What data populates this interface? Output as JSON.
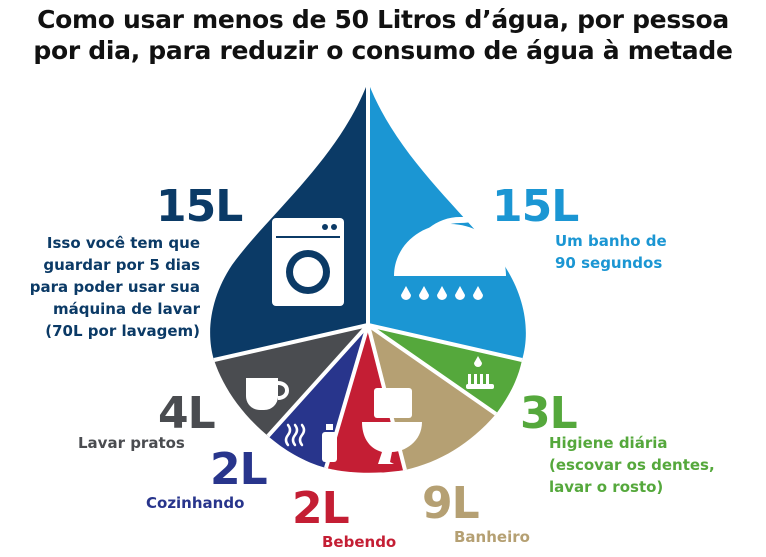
{
  "title": {
    "line1": "Como usar menos de 50 Litros d’água, por pessoa",
    "line2": "por dia, para reduzir o consumo de água à metade"
  },
  "colors": {
    "washing": "#0b3a66",
    "shower": "#1b96d3",
    "hygiene": "#55a83c",
    "toilet": "#b5a073",
    "drinking": "#c41e34",
    "cooking": "#28358c",
    "dishes": "#4a4c50",
    "text_dark": "#111111"
  },
  "icons": [
    "washing-machine-icon",
    "shower-icon",
    "toothbrush-icon",
    "toilet-icon",
    "bottle-icon",
    "steam-icon",
    "cup-icon"
  ],
  "segments": {
    "washing": {
      "amount": "15L",
      "lines": [
        "Isso você tem que",
        "guardar por 5 dias",
        "para poder usar sua",
        "máquina de lavar",
        "(70L por lavagem)"
      ]
    },
    "shower": {
      "amount": "15L",
      "lines": [
        "Um banho de",
        "90 segundos"
      ]
    },
    "hygiene": {
      "amount": "3L",
      "lines": [
        "Higiene diária",
        "(escovar os dentes,",
        "lavar o rosto)"
      ]
    },
    "toilet": {
      "amount": "9L",
      "lines": [
        "Banheiro"
      ]
    },
    "drinking": {
      "amount": "2L",
      "lines": [
        "Bebendo"
      ]
    },
    "cooking": {
      "amount": "2L",
      "lines": [
        "Cozinhando"
      ]
    },
    "dishes": {
      "amount": "4L",
      "lines": [
        "Lavar pratos"
      ]
    }
  }
}
